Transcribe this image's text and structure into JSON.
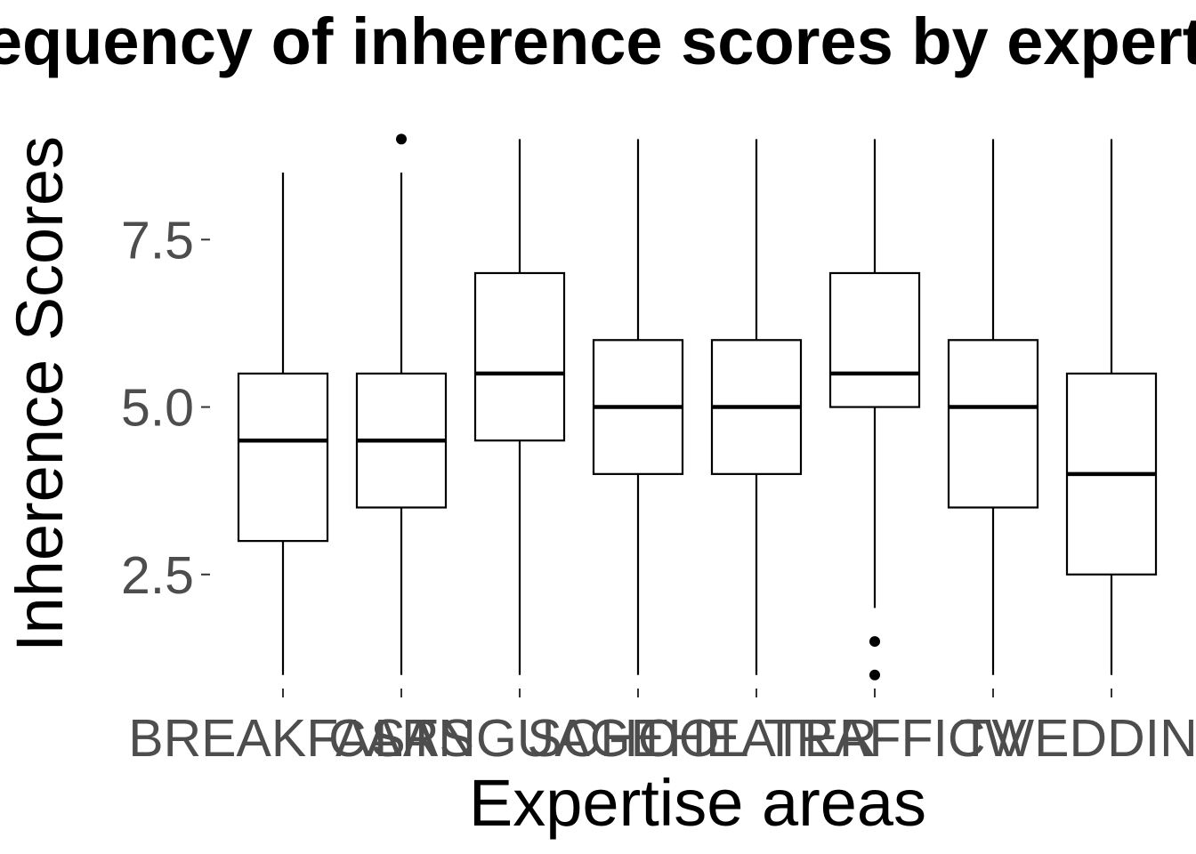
{
  "chart_data": {
    "type": "boxplot",
    "title": "Frequency of inherence scores by expertise areas",
    "xlabel": "Expertise areas",
    "ylabel": "Inherence Scores",
    "ylim": [
      0.85,
      9.55
    ],
    "y_ticks": [
      {
        "value": 2.5,
        "label": "2.5"
      },
      {
        "value": 5.0,
        "label": "5.0"
      },
      {
        "value": 7.5,
        "label": "7.5"
      }
    ],
    "grid": false,
    "categories": [
      "BREAKFAST",
      "CARS",
      "LANGUAGE",
      "SCHOOL",
      "THEATER",
      "TRAFFIC",
      "TV",
      "WEDDING"
    ],
    "boxes": [
      {
        "category": "BREAKFAST",
        "whisker_low": 1.0,
        "q1": 3.0,
        "median": 4.5,
        "q3": 5.5,
        "whisker_high": 8.5,
        "outliers": []
      },
      {
        "category": "CARS",
        "whisker_low": 1.0,
        "q1": 3.5,
        "median": 4.5,
        "q3": 5.5,
        "whisker_high": 8.5,
        "outliers": [
          9.0
        ]
      },
      {
        "category": "LANGUAGE",
        "whisker_low": 1.0,
        "q1": 4.5,
        "median": 5.5,
        "q3": 7.0,
        "whisker_high": 9.0,
        "outliers": []
      },
      {
        "category": "SCHOOL",
        "whisker_low": 1.0,
        "q1": 4.0,
        "median": 5.0,
        "q3": 6.0,
        "whisker_high": 9.0,
        "outliers": []
      },
      {
        "category": "THEATER",
        "whisker_low": 1.0,
        "q1": 4.0,
        "median": 5.0,
        "q3": 6.0,
        "whisker_high": 9.0,
        "outliers": []
      },
      {
        "category": "TRAFFIC",
        "whisker_low": 2.0,
        "q1": 5.0,
        "median": 5.5,
        "q3": 7.0,
        "whisker_high": 9.0,
        "outliers": [
          1.5,
          1.0
        ]
      },
      {
        "category": "TV",
        "whisker_low": 1.0,
        "q1": 3.5,
        "median": 5.0,
        "q3": 6.0,
        "whisker_high": 9.0,
        "outliers": []
      },
      {
        "category": "WEDDING",
        "whisker_low": 1.0,
        "q1": 2.5,
        "median": 4.0,
        "q3": 5.5,
        "whisker_high": 9.0,
        "outliers": []
      }
    ],
    "colors": {
      "box_fill": "#ffffff",
      "box_stroke": "#000000",
      "tick_text": "#4d4d4d",
      "tick_mark": "#333333"
    }
  }
}
